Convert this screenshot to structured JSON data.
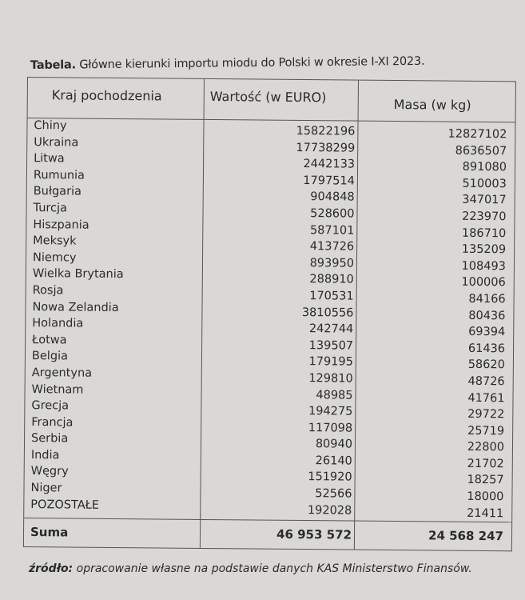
{
  "title": {
    "label": "Tabela.",
    "text": " Główne kierunki importu miodu do Polski w okresie I-XI 2023."
  },
  "headers": [
    "Kraj pochodzenia",
    "Wartość (w EURO)",
    "Masa (w kg)"
  ],
  "rows": [
    {
      "country": "Chiny",
      "value": "15822196",
      "mass": "12827102"
    },
    {
      "country": "Ukraina",
      "value": "17738299",
      "mass": "8636507"
    },
    {
      "country": "Litwa",
      "value": "2442133",
      "mass": "891080"
    },
    {
      "country": "Rumunia",
      "value": "1797514",
      "mass": "510003"
    },
    {
      "country": "Bułgaria",
      "value": "904848",
      "mass": "347017"
    },
    {
      "country": "Turcja",
      "value": "528600",
      "mass": "223970"
    },
    {
      "country": "Hiszpania",
      "value": "587101",
      "mass": "186710"
    },
    {
      "country": "Meksyk",
      "value": "413726",
      "mass": "135209"
    },
    {
      "country": "Niemcy",
      "value": "893950",
      "mass": "108493"
    },
    {
      "country": "Wielka Brytania",
      "value": "288910",
      "mass": "100006"
    },
    {
      "country": "Rosja",
      "value": "170531",
      "mass": "84166"
    },
    {
      "country": "Nowa Zelandia",
      "value": "3810556",
      "mass": "80436"
    },
    {
      "country": "Holandia",
      "value": "242744",
      "mass": "69394"
    },
    {
      "country": "Łotwa",
      "value": "139507",
      "mass": "61436"
    },
    {
      "country": "Belgia",
      "value": "179195",
      "mass": "58620"
    },
    {
      "country": "Argentyna",
      "value": "129810",
      "mass": "48726"
    },
    {
      "country": "Wietnam",
      "value": "48985",
      "mass": "41761"
    },
    {
      "country": "Grecja",
      "value": "194275",
      "mass": "29722"
    },
    {
      "country": "Francja",
      "value": "117098",
      "mass": "25719"
    },
    {
      "country": "Serbia",
      "value": "80940",
      "mass": "22800"
    },
    {
      "country": "India",
      "value": "26140",
      "mass": "21702"
    },
    {
      "country": "Węgry",
      "value": "151920",
      "mass": "18257"
    },
    {
      "country": "Niger",
      "value": "52566",
      "mass": "18000"
    },
    {
      "country": "POZOSTAŁE",
      "value": "192028",
      "mass": "21411"
    }
  ],
  "sum": {
    "label": "Suma",
    "value": "46 953 572",
    "mass": "24 568 247"
  },
  "source": {
    "label": "źródło:",
    "text": " opracowanie własne na podstawie danych KAS Ministerstwo Finansów."
  }
}
